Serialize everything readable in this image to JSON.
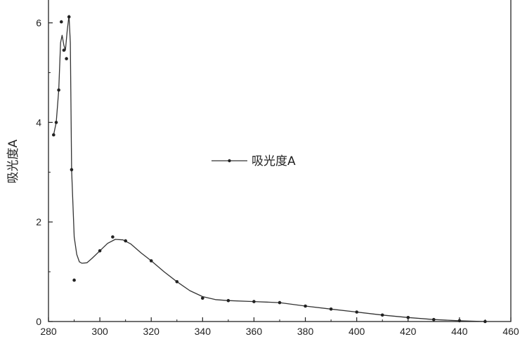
{
  "chart_data": {
    "type": "line",
    "title": "",
    "xlabel": "",
    "ylabel": "吸光度A",
    "xlim": [
      280,
      460
    ],
    "ylim": [
      0,
      6.6
    ],
    "x_ticks": [
      280,
      300,
      320,
      340,
      360,
      380,
      400,
      420,
      440,
      460
    ],
    "y_ticks": [
      0,
      2,
      4,
      6
    ],
    "grid": false,
    "legend_position": "center",
    "series": [
      {
        "name": "吸光度A",
        "points": [
          [
            282,
            3.75
          ],
          [
            283,
            4.0
          ],
          [
            284,
            4.65
          ],
          [
            285,
            6.02
          ],
          [
            286,
            5.45
          ],
          [
            287,
            5.28
          ],
          [
            288,
            6.12
          ],
          [
            289,
            3.05
          ],
          [
            290,
            0.83
          ],
          [
            300,
            1.42
          ],
          [
            305,
            1.7
          ],
          [
            310,
            1.62
          ],
          [
            320,
            1.22
          ],
          [
            330,
            0.8
          ],
          [
            340,
            0.47
          ],
          [
            350,
            0.42
          ],
          [
            360,
            0.4
          ],
          [
            370,
            0.38
          ],
          [
            380,
            0.31
          ],
          [
            390,
            0.25
          ],
          [
            400,
            0.19
          ],
          [
            410,
            0.13
          ],
          [
            420,
            0.08
          ],
          [
            430,
            0.04
          ],
          [
            440,
            0.015
          ],
          [
            450,
            0.0
          ]
        ],
        "curve": [
          [
            282,
            3.75
          ],
          [
            283,
            4.0
          ],
          [
            284,
            4.65
          ],
          [
            284.7,
            5.6
          ],
          [
            285.3,
            5.75
          ],
          [
            286,
            5.55
          ],
          [
            286.6,
            5.45
          ],
          [
            287.3,
            5.85
          ],
          [
            288,
            6.15
          ],
          [
            288.5,
            5.6
          ],
          [
            289,
            3.05
          ],
          [
            290,
            1.7
          ],
          [
            291,
            1.35
          ],
          [
            292,
            1.2
          ],
          [
            293,
            1.17
          ],
          [
            295,
            1.18
          ],
          [
            297,
            1.27
          ],
          [
            300,
            1.42
          ],
          [
            303,
            1.57
          ],
          [
            306,
            1.65
          ],
          [
            309,
            1.64
          ],
          [
            312,
            1.56
          ],
          [
            316,
            1.38
          ],
          [
            320,
            1.22
          ],
          [
            325,
            1.0
          ],
          [
            330,
            0.8
          ],
          [
            335,
            0.62
          ],
          [
            340,
            0.5
          ],
          [
            345,
            0.44
          ],
          [
            350,
            0.42
          ],
          [
            360,
            0.4
          ],
          [
            370,
            0.38
          ],
          [
            380,
            0.31
          ],
          [
            390,
            0.25
          ],
          [
            400,
            0.19
          ],
          [
            410,
            0.13
          ],
          [
            420,
            0.08
          ],
          [
            430,
            0.04
          ],
          [
            440,
            0.015
          ],
          [
            450,
            0.0
          ]
        ]
      }
    ]
  }
}
